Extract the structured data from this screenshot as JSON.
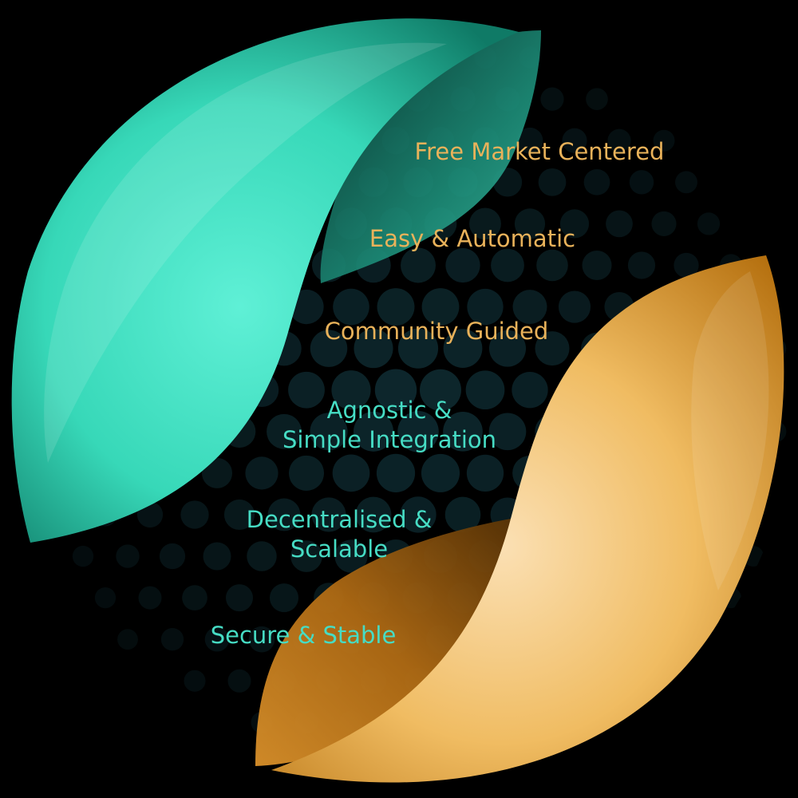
{
  "colors": {
    "background": "#000000",
    "teal": "#3fe0c0",
    "teal_dark": "#0f7a66",
    "gold": "#f0b860",
    "gold_dark": "#b5700f",
    "dots": "#0e2a30",
    "label_gold": "#e9b25a",
    "label_teal": "#46dcc4"
  },
  "features": [
    {
      "lines": [
        "Free Market Centered"
      ],
      "color": "gold"
    },
    {
      "lines": [
        "Easy & Automatic"
      ],
      "color": "gold"
    },
    {
      "lines": [
        "Community Guided"
      ],
      "color": "gold"
    },
    {
      "lines": [
        "Agnostic &",
        "Simple Integration"
      ],
      "color": "teal"
    },
    {
      "lines": [
        "Decentralised &",
        "Scalable"
      ],
      "color": "teal"
    },
    {
      "lines": [
        "Secure & Stable"
      ],
      "color": "teal"
    }
  ]
}
